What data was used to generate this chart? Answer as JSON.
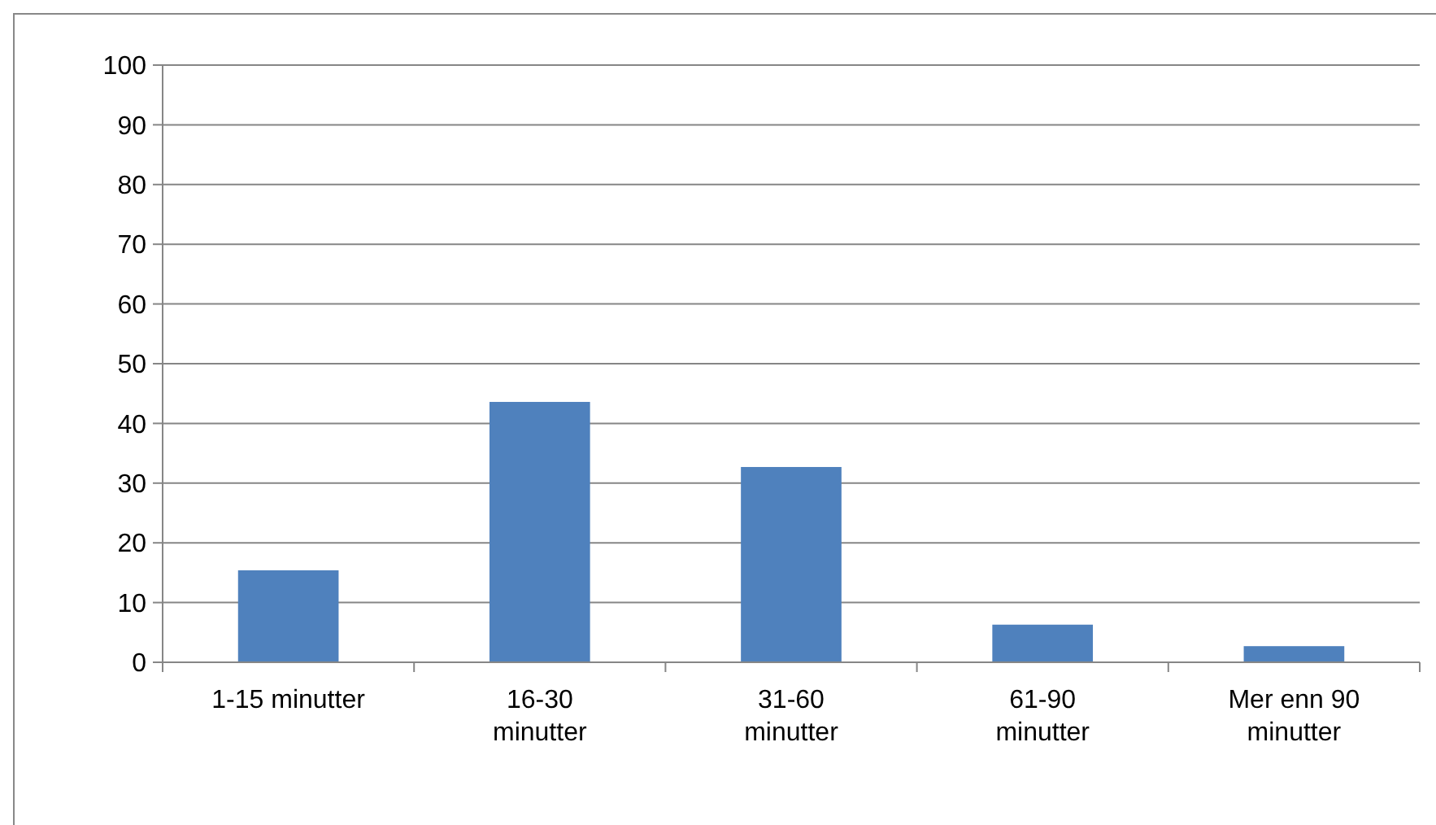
{
  "chart_data": {
    "type": "bar",
    "categories": [
      "1-15 minutter",
      "16-30 minutter",
      "31-60 minutter",
      "61-90 minutter",
      "Mer enn 90 minutter"
    ],
    "values": [
      15.4,
      43.6,
      32.7,
      6.3,
      2.7
    ],
    "color": "#4f81bd",
    "ylim": [
      0,
      100
    ],
    "yticks": [
      0,
      10,
      20,
      30,
      40,
      50,
      60,
      70,
      80,
      90,
      100
    ],
    "grid": "y"
  }
}
